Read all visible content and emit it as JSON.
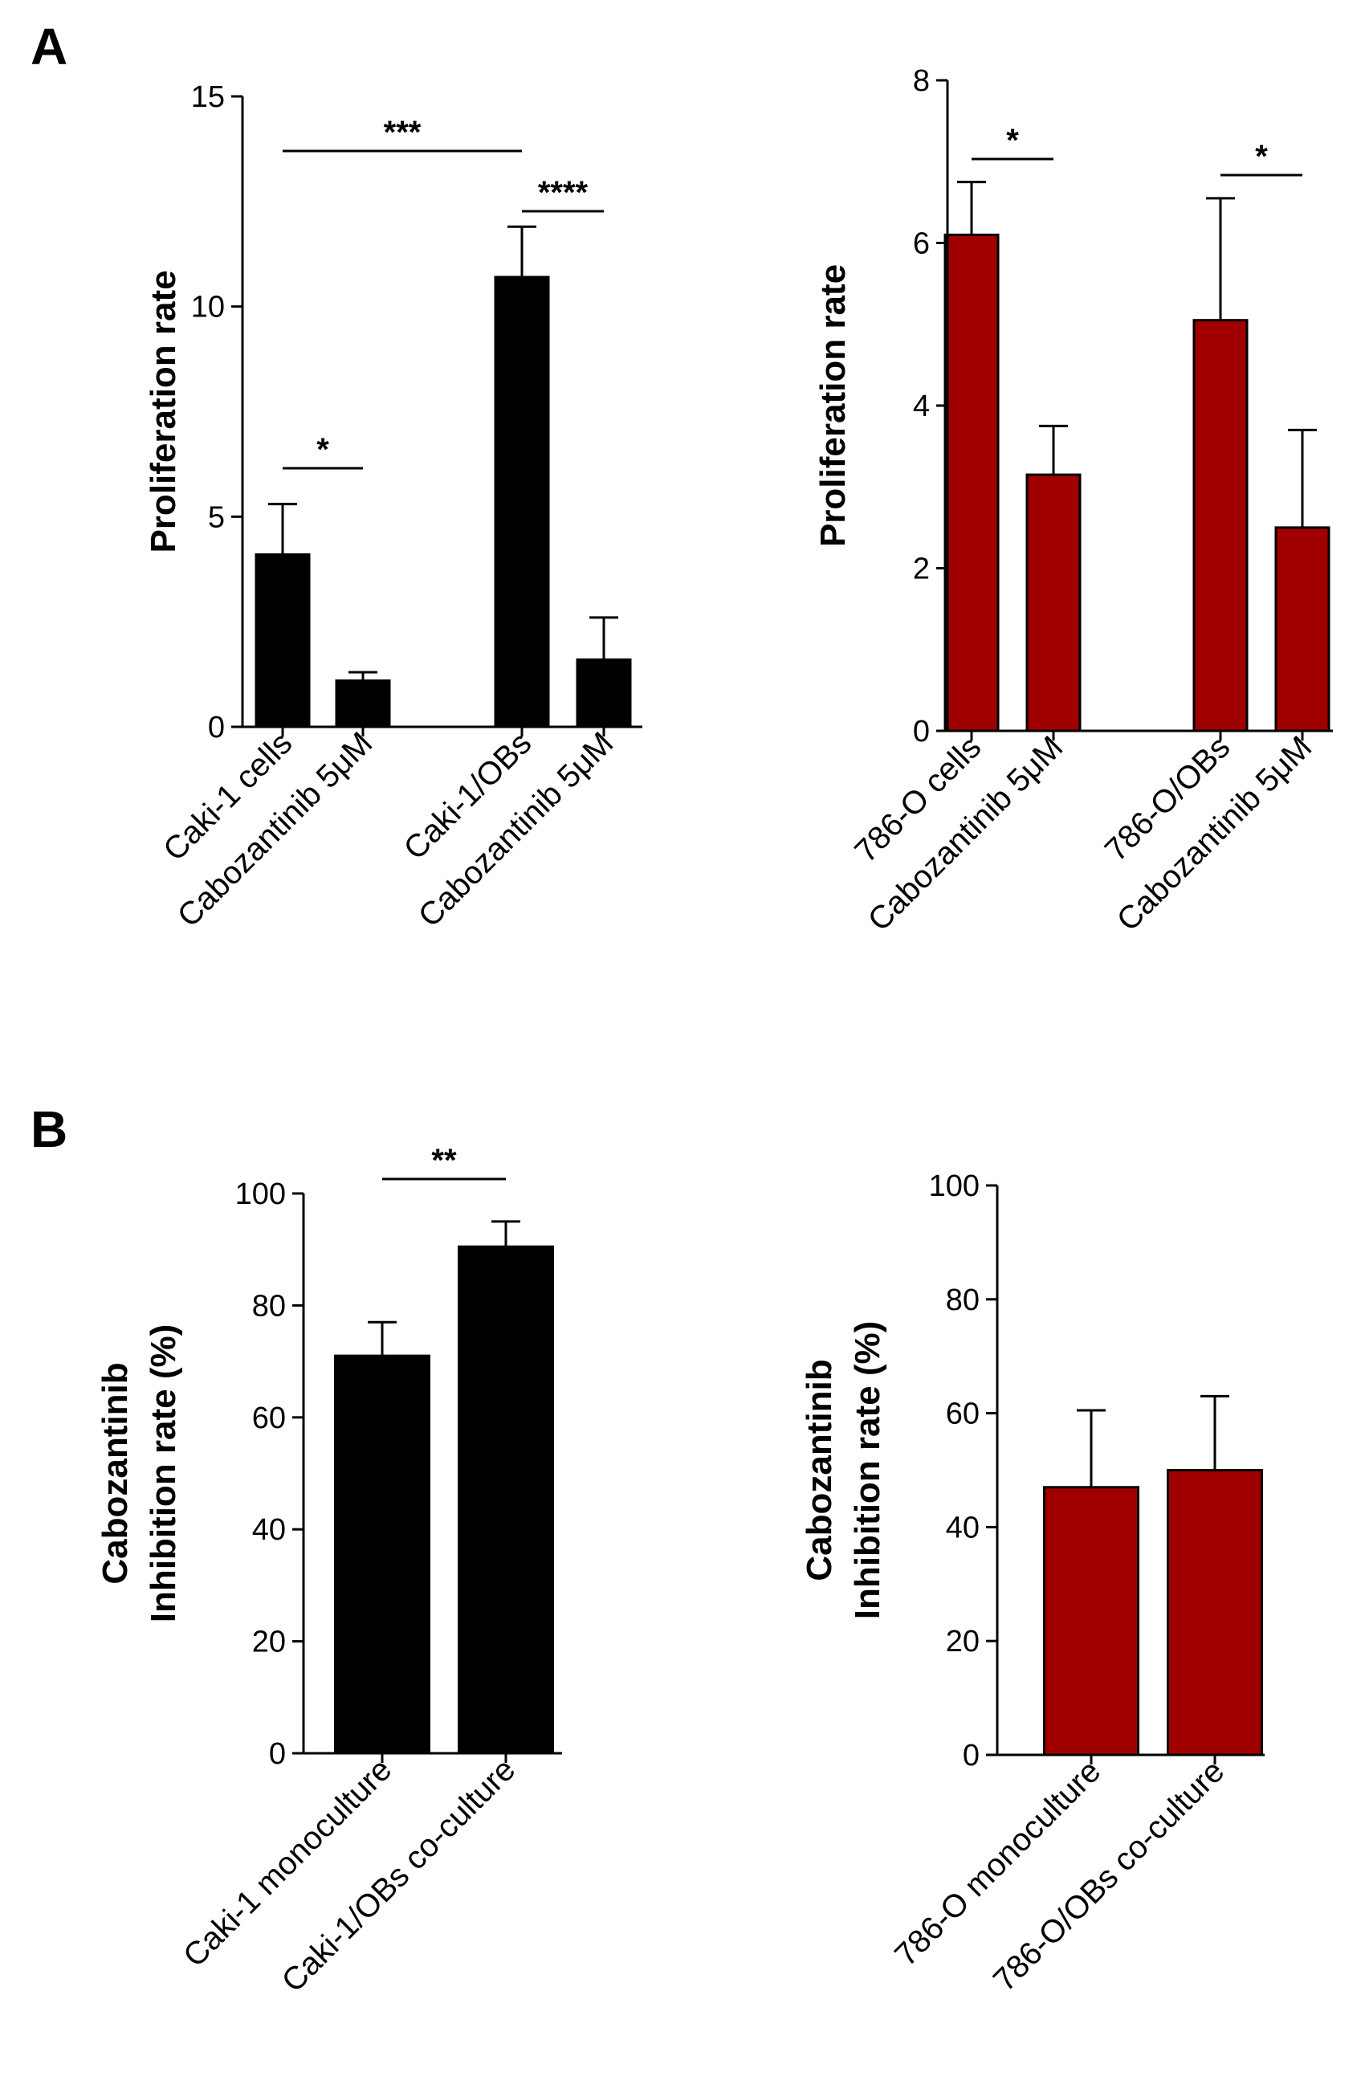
{
  "panels": {
    "a": {
      "label": "A"
    },
    "b": {
      "label": "B"
    }
  },
  "colors": {
    "black_bar": "#000000",
    "red_bar": "#A00000",
    "axis": "#000000"
  },
  "chart_data": [
    {
      "id": "a_left",
      "type": "bar",
      "panel": "A",
      "title": "",
      "xlabel": "",
      "ylabel": "Proliferation rate",
      "ylim": [
        0,
        15
      ],
      "yticks": [
        0,
        5,
        10,
        15
      ],
      "color": "#000000",
      "categories": [
        "Caki-1 cells",
        "Cabozantinib 5μM",
        "Caki-1/OBs",
        "Cabozantinib 5μM"
      ],
      "values": [
        4.1,
        1.1,
        10.7,
        1.6
      ],
      "errors": [
        1.2,
        0.2,
        1.2,
        1.0
      ],
      "significance": [
        {
          "from": 0,
          "to": 1,
          "label": "*"
        },
        {
          "from": 0,
          "to": 2,
          "label": "***"
        },
        {
          "from": 2,
          "to": 3,
          "label": "****"
        }
      ]
    },
    {
      "id": "a_right",
      "type": "bar",
      "panel": "A",
      "title": "",
      "xlabel": "",
      "ylabel": "Proliferation rate",
      "ylim": [
        0,
        8
      ],
      "yticks": [
        0,
        2,
        4,
        6,
        8
      ],
      "color": "#A00000",
      "categories": [
        "786-O cells",
        "Cabozantinib 5μM",
        "786-O/OBs",
        "Cabozantinib 5μM"
      ],
      "values": [
        6.1,
        3.15,
        5.05,
        2.5
      ],
      "errors": [
        0.65,
        0.6,
        1.5,
        1.2
      ],
      "significance": [
        {
          "from": 0,
          "to": 1,
          "label": "*"
        },
        {
          "from": 2,
          "to": 3,
          "label": "*"
        }
      ]
    },
    {
      "id": "b_left",
      "type": "bar",
      "panel": "B",
      "title": "",
      "xlabel": "",
      "ylabel_lines": [
        "Cabozantinib",
        "Inhibition rate (%)"
      ],
      "ylim": [
        0,
        100
      ],
      "yticks": [
        0,
        20,
        40,
        60,
        80,
        100
      ],
      "color": "#000000",
      "categories": [
        "Caki-1 monoculture",
        "Caki-1/OBs co-culture"
      ],
      "values": [
        71,
        90.5
      ],
      "errors": [
        6,
        4.5
      ],
      "significance": [
        {
          "from": 0,
          "to": 1,
          "label": "**"
        }
      ]
    },
    {
      "id": "b_right",
      "type": "bar",
      "panel": "B",
      "title": "",
      "xlabel": "",
      "ylabel_lines": [
        "Cabozantinib",
        "Inhibition rate (%)"
      ],
      "ylim": [
        0,
        100
      ],
      "yticks": [
        0,
        20,
        40,
        60,
        80,
        100
      ],
      "color": "#A00000",
      "categories": [
        "786-O monoculture",
        "786-O/OBs co-culture"
      ],
      "values": [
        47,
        50
      ],
      "errors": [
        13.5,
        13
      ],
      "significance": []
    }
  ]
}
